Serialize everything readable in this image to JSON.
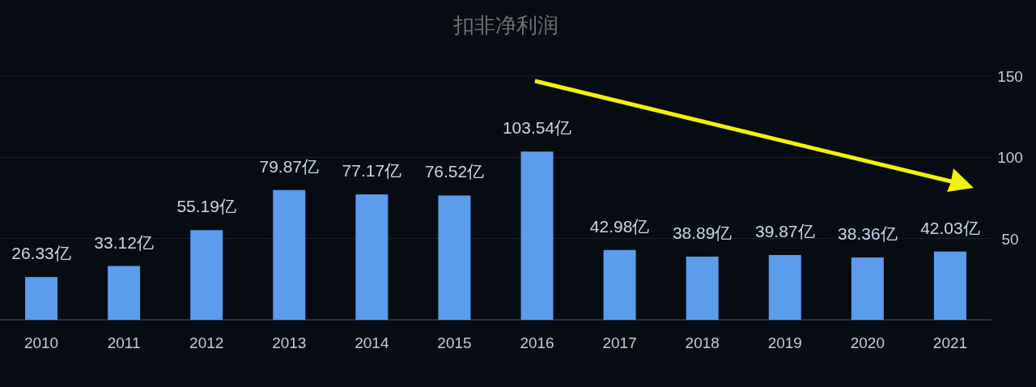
{
  "chart_data": {
    "type": "bar",
    "title": "扣非净利润",
    "categories": [
      "2010",
      "2011",
      "2012",
      "2013",
      "2014",
      "2015",
      "2016",
      "2017",
      "2018",
      "2019",
      "2020",
      "2021"
    ],
    "values": [
      26.33,
      33.12,
      55.19,
      79.87,
      77.17,
      76.52,
      103.54,
      42.98,
      38.89,
      39.87,
      38.36,
      42.03
    ],
    "value_labels": [
      "26.33亿",
      "33.12亿",
      "55.19亿",
      "79.87亿",
      "77.17亿",
      "76.52亿",
      "103.54亿",
      "42.98亿",
      "38.89亿",
      "39.87亿",
      "38.36亿",
      "42.03亿"
    ],
    "color": "#5b9cec",
    "ylim": [
      0,
      150
    ],
    "yticks": [
      50,
      100,
      150
    ],
    "grid": "y"
  }
}
